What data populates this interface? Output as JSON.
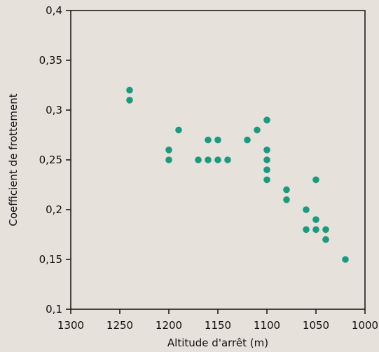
{
  "chart_data": {
    "type": "scatter",
    "title": "",
    "xlabel": "Altitude d'arrêt (m)",
    "ylabel": "Coefficient de frottement",
    "xlim": [
      1300,
      1000
    ],
    "ylim": [
      0.1,
      0.4
    ],
    "x_reversed": true,
    "grid": false,
    "x_ticks": [
      1300,
      1250,
      1200,
      1150,
      1100,
      1050,
      1000
    ],
    "x_tick_labels": [
      "1300",
      "1250",
      "1200",
      "1150",
      "1100",
      "1050",
      "1000"
    ],
    "y_ticks": [
      0.1,
      0.15,
      0.2,
      0.25,
      0.3,
      0.35,
      0.4
    ],
    "y_tick_labels": [
      "0,1",
      "0,15",
      "0,2",
      "0,25",
      "0,3",
      "0,35",
      "0,4"
    ],
    "series": [
      {
        "color": "#1a9b80",
        "points": [
          {
            "x": 1240,
            "y": 0.32
          },
          {
            "x": 1240,
            "y": 0.31
          },
          {
            "x": 1200,
            "y": 0.26
          },
          {
            "x": 1200,
            "y": 0.25
          },
          {
            "x": 1190,
            "y": 0.28
          },
          {
            "x": 1170,
            "y": 0.25
          },
          {
            "x": 1160,
            "y": 0.27
          },
          {
            "x": 1160,
            "y": 0.25
          },
          {
            "x": 1150,
            "y": 0.27
          },
          {
            "x": 1150,
            "y": 0.25
          },
          {
            "x": 1140,
            "y": 0.25
          },
          {
            "x": 1120,
            "y": 0.27
          },
          {
            "x": 1110,
            "y": 0.28
          },
          {
            "x": 1100,
            "y": 0.29
          },
          {
            "x": 1100,
            "y": 0.26
          },
          {
            "x": 1100,
            "y": 0.25
          },
          {
            "x": 1100,
            "y": 0.24
          },
          {
            "x": 1100,
            "y": 0.23
          },
          {
            "x": 1080,
            "y": 0.22
          },
          {
            "x": 1080,
            "y": 0.21
          },
          {
            "x": 1060,
            "y": 0.2
          },
          {
            "x": 1060,
            "y": 0.18
          },
          {
            "x": 1050,
            "y": 0.23
          },
          {
            "x": 1050,
            "y": 0.19
          },
          {
            "x": 1050,
            "y": 0.18
          },
          {
            "x": 1040,
            "y": 0.18
          },
          {
            "x": 1040,
            "y": 0.17
          },
          {
            "x": 1020,
            "y": 0.15
          }
        ]
      }
    ]
  }
}
